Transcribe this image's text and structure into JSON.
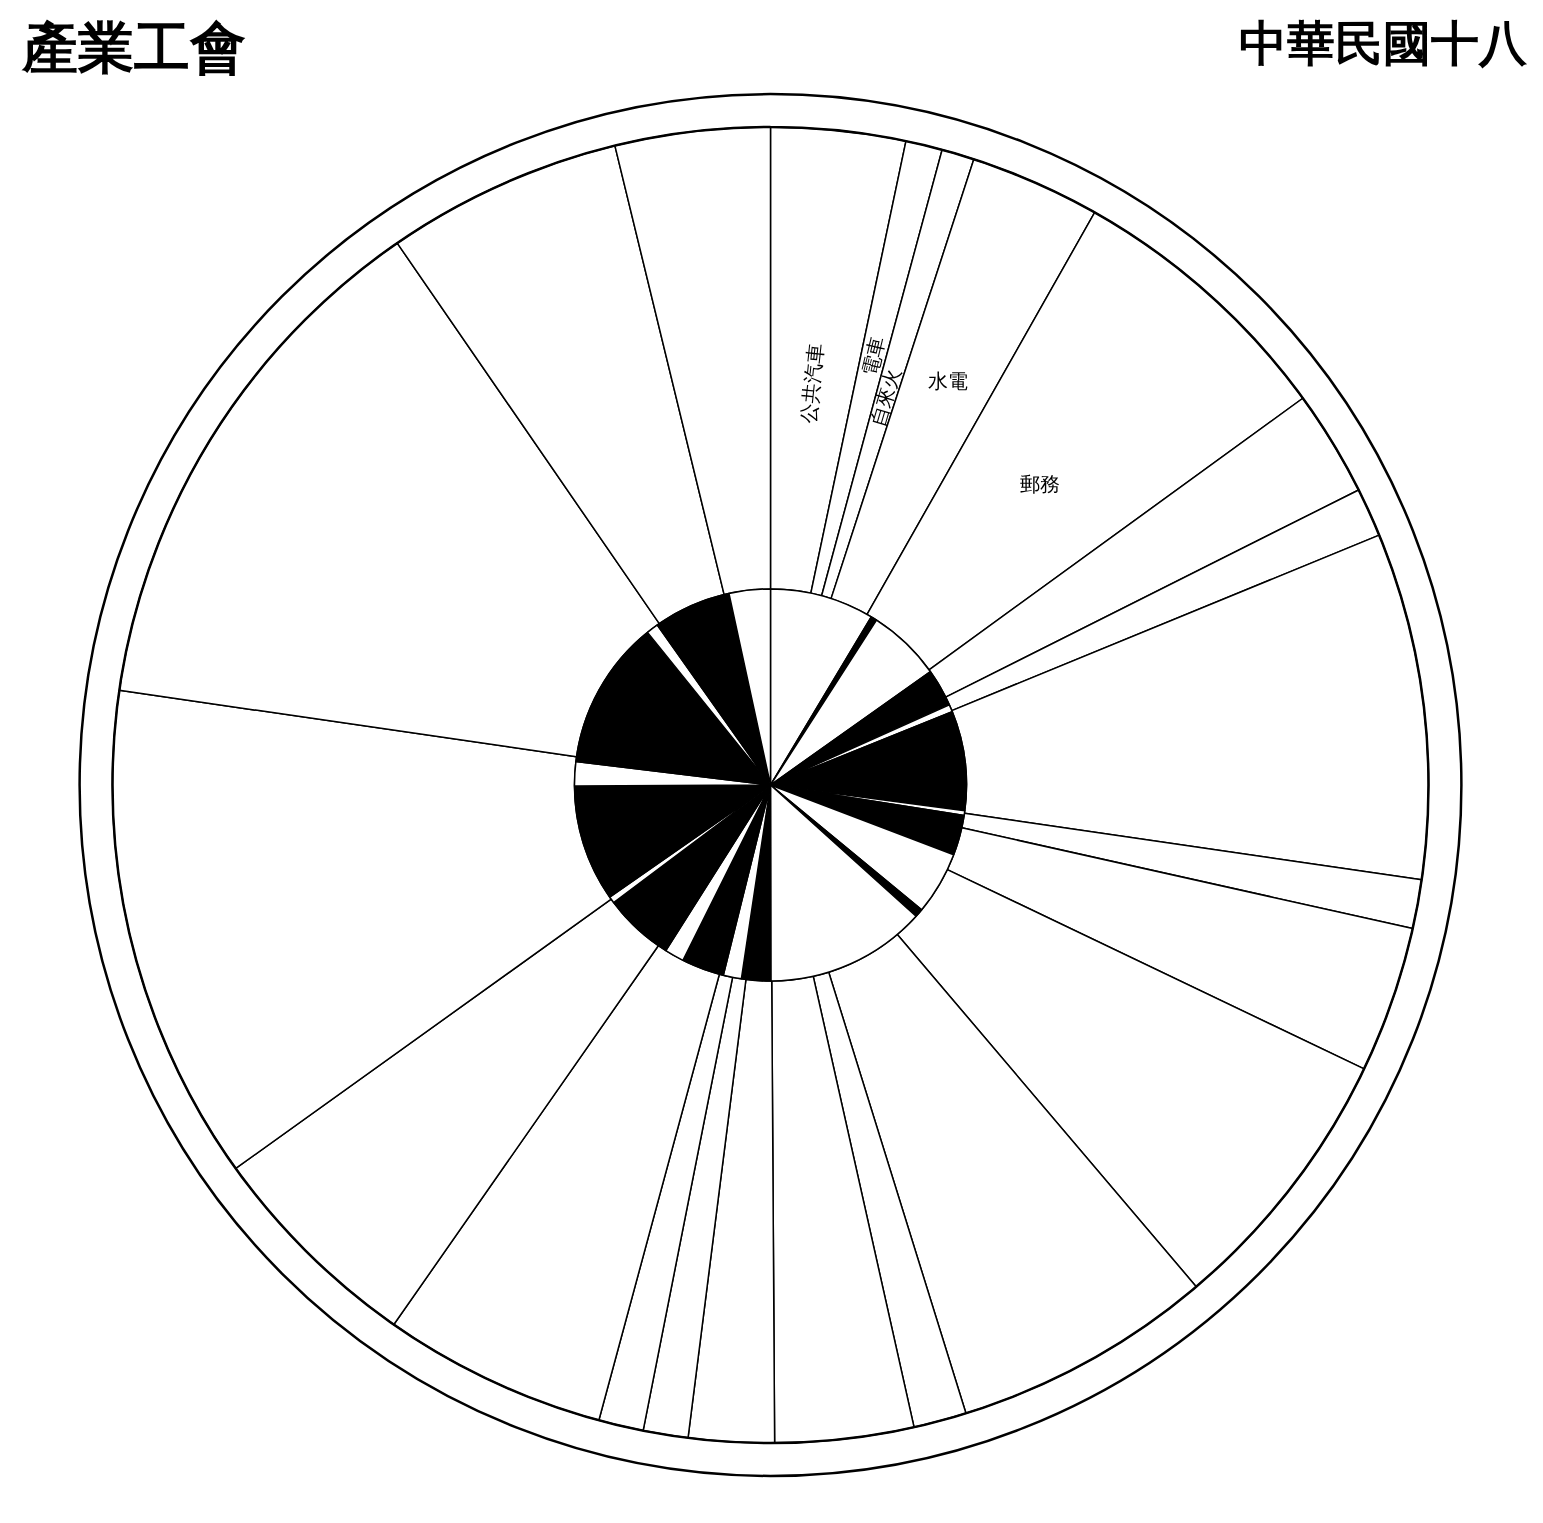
{
  "chart_data": {
    "type": "donut",
    "title": "產業工會",
    "subtitle": "中華民國十八",
    "categories": [
      "公共汽車",
      "電車",
      "自來火",
      "水電",
      "郵務",
      null,
      null,
      null,
      null,
      null,
      null,
      null,
      null,
      null,
      null,
      null,
      null,
      null,
      null,
      null,
      null,
      null,
      null
    ],
    "series": [
      {
        "values": [
          3.3,
          0.9,
          0.8,
          3.2,
          6.8,
          2.6,
          1.2,
          8.5,
          1.2,
          3.6,
          6.7,
          6.4,
          1.3,
          3.4,
          2.1,
          1.1,
          1.1,
          5.5,
          5.4,
          12.2,
          13.1,
          5.8,
          3.8
        ],
        "colors": [
          "#ffffff",
          "#ffffff",
          "#ffffff",
          "#ffffff",
          "#ffffff",
          "#ffffff",
          "#ffffff",
          "#ffffff",
          "#ffffff",
          "#ffffff",
          "#ffffff",
          "#ffffff",
          "#ffffff",
          "#ffffff",
          "#ffffff",
          "#ffffff",
          "#ffffff",
          "#ffffff",
          "#ffffff",
          "#ffffff",
          "#ffffff",
          "#ffffff",
          "#ffffff"
        ]
      },
      {
        "values": [
          8.6,
          0.5,
          6.1,
          3.1,
          0.6,
          8.2,
          0.4,
          3.3,
          5.2,
          0.7,
          13.3,
          2.4,
          1.5,
          3.5,
          1.6,
          5.8,
          0.55,
          9.6,
          2.0,
          12.3,
          1.0,
          6.4,
          3.4
        ],
        "colors": [
          "#ffffff",
          "#000000",
          "#ffffff",
          "#000000",
          "#ffffff",
          "#000000",
          "#ffffff",
          "#000000",
          "#ffffff",
          "#000000",
          "#ffffff",
          "#000000",
          "#ffffff",
          "#000000",
          "#ffffff",
          "#000000",
          "#ffffff",
          "#000000",
          "#ffffff",
          "#000000",
          "#ffffff",
          "#000000",
          "#ffffff"
        ]
      }
    ]
  }
}
